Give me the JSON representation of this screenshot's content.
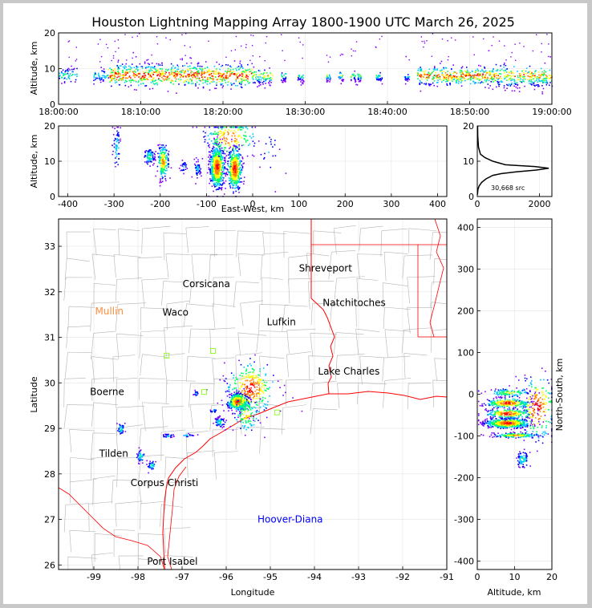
{
  "title": "Houston Lightning Mapping Array 1800-1900 UTC March 26, 2025",
  "colors": {
    "lightning_ramp": [
      "#8000ff",
      "#0000ff",
      "#00c8ff",
      "#00ff60",
      "#ffff00",
      "#ff8000",
      "#ff0000"
    ],
    "coastline": "#ff0000",
    "county_lines": "#b4b4b4",
    "hoover_diana": "#0000ff",
    "city_orange": "#ff8c3c",
    "houston_label": "#ffa500"
  },
  "chart_data": [
    {
      "type": "scatter",
      "panel": "time-altitude",
      "xlabel": "",
      "ylabel": "Altitude, km",
      "xlim": [
        "18:00:00",
        "19:00:00"
      ],
      "ylim": [
        0,
        20
      ],
      "xticks": [
        "18:00:00",
        "18:10:00",
        "18:20:00",
        "18:30:00",
        "18:40:00",
        "18:50:00",
        "19:00:00"
      ],
      "yticks": [
        0,
        10,
        20
      ],
      "activity_segments": [
        {
          "start_min": 0.0,
          "end_min": 2.2,
          "alt": [
            6,
            11
          ],
          "density": 0.5
        },
        {
          "start_min": 4.2,
          "end_min": 6.0,
          "alt": [
            6,
            10
          ],
          "density": 0.5
        },
        {
          "start_min": 6.0,
          "end_min": 23.5,
          "alt": [
            5,
            12
          ],
          "density": 1.0
        },
        {
          "start_min": 23.5,
          "end_min": 26.0,
          "alt": [
            5,
            10
          ],
          "density": 0.7
        },
        {
          "start_min": 27.0,
          "end_min": 27.6,
          "alt": [
            6,
            9
          ],
          "density": 0.6
        },
        {
          "start_min": 29.0,
          "end_min": 29.8,
          "alt": [
            6,
            9
          ],
          "density": 0.6
        },
        {
          "start_min": 32.5,
          "end_min": 33.0,
          "alt": [
            6,
            9
          ],
          "density": 0.6
        },
        {
          "start_min": 34.0,
          "end_min": 34.6,
          "alt": [
            6,
            9
          ],
          "density": 0.6
        },
        {
          "start_min": 35.5,
          "end_min": 36.8,
          "alt": [
            6,
            9
          ],
          "density": 0.6
        },
        {
          "start_min": 38.5,
          "end_min": 39.3,
          "alt": [
            6,
            9
          ],
          "density": 0.6
        },
        {
          "start_min": 42.0,
          "end_min": 42.6,
          "alt": [
            6,
            9
          ],
          "density": 0.5
        },
        {
          "start_min": 43.5,
          "end_min": 53.0,
          "alt": [
            5,
            11
          ],
          "density": 0.9
        },
        {
          "start_min": 53.0,
          "end_min": 60.0,
          "alt": [
            4,
            11
          ],
          "density": 0.8
        }
      ]
    },
    {
      "type": "scatter",
      "panel": "east-west-altitude",
      "xlabel": "East-West, km",
      "ylabel": "Altitude, km",
      "xlim": [
        -420,
        420
      ],
      "ylim": [
        0,
        20
      ],
      "xticks": [
        -400,
        -300,
        -200,
        -100,
        0,
        100,
        200,
        300,
        400
      ],
      "yticks": [
        0,
        10,
        20
      ],
      "clusters": [
        {
          "x": -295,
          "alt": 14,
          "sx": 4,
          "sa": 3,
          "n": 60
        },
        {
          "x": -225,
          "alt": 11.5,
          "sx": 6,
          "sa": 1.2,
          "n": 90
        },
        {
          "x": -195,
          "alt": 10,
          "sx": 6,
          "sa": 2.5,
          "n": 180
        },
        {
          "x": -150,
          "alt": 8.5,
          "sx": 4,
          "sa": 1,
          "n": 25
        },
        {
          "x": -120,
          "alt": 8,
          "sx": 4,
          "sa": 1.2,
          "n": 50
        },
        {
          "x": -78,
          "alt": 8.5,
          "sx": 8,
          "sa": 3,
          "n": 650
        },
        {
          "x": -40,
          "alt": 8,
          "sx": 8,
          "sa": 3,
          "n": 450
        },
        {
          "x": -50,
          "alt": 17,
          "sx": 28,
          "sa": 3,
          "n": 200
        },
        {
          "x": 35,
          "alt": 12,
          "sx": 15,
          "sa": 4,
          "n": 20
        }
      ]
    },
    {
      "type": "line",
      "panel": "altitude-histogram",
      "xlabel": "",
      "ylabel": "",
      "xlim": [
        0,
        2400
      ],
      "ylim": [
        0,
        20
      ],
      "xticks": [
        0,
        2000
      ],
      "yticks": [
        0,
        10,
        20
      ],
      "annotation": "30,668 src",
      "profile": [
        {
          "alt": 0.5,
          "count": 5
        },
        {
          "alt": 2,
          "count": 20
        },
        {
          "alt": 3,
          "count": 60
        },
        {
          "alt": 4,
          "count": 140
        },
        {
          "alt": 5,
          "count": 280
        },
        {
          "alt": 6,
          "count": 500
        },
        {
          "alt": 6.5,
          "count": 780
        },
        {
          "alt": 7,
          "count": 1250
        },
        {
          "alt": 7.5,
          "count": 1900
        },
        {
          "alt": 8,
          "count": 2300
        },
        {
          "alt": 8.5,
          "count": 1850
        },
        {
          "alt": 9,
          "count": 900
        },
        {
          "alt": 10,
          "count": 500
        },
        {
          "alt": 11,
          "count": 250
        },
        {
          "alt": 12,
          "count": 100
        },
        {
          "alt": 14,
          "count": 40
        },
        {
          "alt": 17,
          "count": 15
        },
        {
          "alt": 20,
          "count": 10
        }
      ]
    },
    {
      "type": "scatter",
      "panel": "plan-view-map",
      "xlabel": "Longitude",
      "ylabel": "Latitude",
      "xlim": [
        -99.8,
        -91.0
      ],
      "ylim": [
        25.9,
        33.6
      ],
      "xticks": [
        -99,
        -98,
        -97,
        -96,
        -95,
        -94,
        -93,
        -92,
        -91
      ],
      "yticks": [
        26,
        27,
        28,
        29,
        30,
        31,
        32,
        33
      ],
      "places": [
        {
          "name": "Shreveport",
          "lon": -93.75,
          "lat": 32.52,
          "color": "#000000"
        },
        {
          "name": "Corsicana",
          "lon": -96.45,
          "lat": 32.17,
          "color": "#000000"
        },
        {
          "name": "Mullin",
          "lon": -98.65,
          "lat": 31.57,
          "color": "#ff8c3c"
        },
        {
          "name": "Waco",
          "lon": -97.15,
          "lat": 31.55,
          "color": "#000000"
        },
        {
          "name": "Natchitoches",
          "lon": -93.1,
          "lat": 31.76,
          "color": "#000000"
        },
        {
          "name": "Lufkin",
          "lon": -94.75,
          "lat": 31.34,
          "color": "#000000"
        },
        {
          "name": "Lake Charles",
          "lon": -93.22,
          "lat": 30.25,
          "color": "#000000"
        },
        {
          "name": "Boerne",
          "lon": -98.7,
          "lat": 29.8,
          "color": "#000000"
        },
        {
          "name": "Tilden",
          "lon": -98.55,
          "lat": 28.45,
          "color": "#000000"
        },
        {
          "name": "Corpus Christi",
          "lon": -97.4,
          "lat": 27.8,
          "color": "#000000"
        },
        {
          "name": "Port Isabel",
          "lon": -97.22,
          "lat": 26.08,
          "color": "#000000"
        },
        {
          "name": "Hoover-Diana",
          "lon": -94.55,
          "lat": 27.0,
          "color": "#0000ff"
        }
      ],
      "clusters": [
        {
          "lon": -98.4,
          "lat": 29.0,
          "slon": 0.04,
          "slat": 0.06,
          "n": 40
        },
        {
          "lon": -97.33,
          "lat": 28.85,
          "slon": 0.08,
          "slat": 0.02,
          "n": 30
        },
        {
          "lon": -96.9,
          "lat": 28.86,
          "slon": 0.08,
          "slat": 0.02,
          "n": 20
        },
        {
          "lon": -97.95,
          "lat": 28.4,
          "slon": 0.05,
          "slat": 0.07,
          "n": 40
        },
        {
          "lon": -97.7,
          "lat": 28.2,
          "slon": 0.05,
          "slat": 0.05,
          "n": 35
        },
        {
          "lon": -96.7,
          "lat": 29.78,
          "slon": 0.03,
          "slat": 0.03,
          "n": 15
        },
        {
          "lon": -96.3,
          "lat": 29.4,
          "slon": 0.04,
          "slat": 0.03,
          "n": 20
        },
        {
          "lon": -96.15,
          "lat": 29.15,
          "slon": 0.06,
          "slat": 0.05,
          "n": 60
        },
        {
          "lon": -95.75,
          "lat": 29.6,
          "slon": 0.12,
          "slat": 0.09,
          "n": 500
        },
        {
          "lon": -95.45,
          "lat": 29.9,
          "slon": 0.28,
          "slat": 0.3,
          "n": 320
        },
        {
          "lon": -95.55,
          "lat": 29.3,
          "slon": 0.15,
          "slat": 0.2,
          "n": 110
        }
      ]
    },
    {
      "type": "scatter",
      "panel": "altitude-north-south",
      "xlabel": "Altitude, km",
      "ylabel": "North-South, km",
      "xlim": [
        0,
        20
      ],
      "ylim": [
        -420,
        420
      ],
      "xticks": [
        0,
        10,
        20
      ],
      "yticks": [
        -400,
        -300,
        -200,
        -100,
        0,
        100,
        200,
        300,
        400
      ],
      "clusters": [
        {
          "alt": 8,
          "ns": -68,
          "sa": 3,
          "sn": 6,
          "n": 650
        },
        {
          "alt": 8,
          "ns": -20,
          "sa": 3,
          "sn": 6,
          "n": 260
        },
        {
          "alt": 8,
          "ns": -45,
          "sa": 3,
          "sn": 6,
          "n": 220
        },
        {
          "alt": 10,
          "ns": -97,
          "sa": 3,
          "sn": 3,
          "n": 160
        },
        {
          "alt": 8.5,
          "ns": 5,
          "sa": 3,
          "sn": 5,
          "n": 120
        },
        {
          "alt": 12,
          "ns": -155,
          "sa": 0.8,
          "sn": 10,
          "n": 70
        },
        {
          "alt": 16,
          "ns": -30,
          "sa": 2.5,
          "sn": 40,
          "n": 220
        }
      ]
    }
  ]
}
